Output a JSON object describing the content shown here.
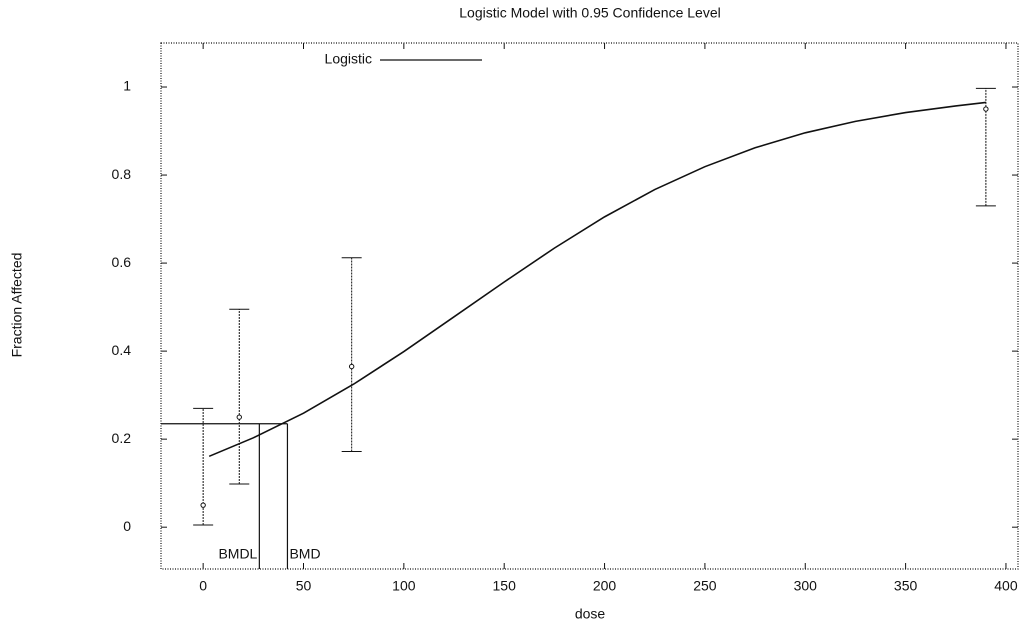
{
  "chart_data": {
    "type": "errorbar-fit",
    "title": "Logistic Model with 0.95 Confidence Level",
    "x_label": "dose",
    "y_label": "Fraction Affected",
    "xlim": [
      -21,
      406
    ],
    "ylim": [
      -0.095,
      1.1
    ],
    "xticks": [
      0,
      50,
      100,
      150,
      200,
      250,
      300,
      350,
      400
    ],
    "yticks": [
      0,
      0.2,
      0.4,
      0.6,
      0.8,
      1
    ],
    "observed": {
      "x": [
        0,
        18,
        74,
        390
      ],
      "values": [
        0.05,
        0.25,
        0.365,
        0.95
      ],
      "lower": [
        0.005,
        0.098,
        0.172,
        0.73
      ],
      "upper": [
        0.27,
        0.495,
        0.612,
        0.997
      ]
    },
    "series": [
      {
        "name": "Logistic",
        "color": "#111111",
        "x": [
          3,
          25,
          50,
          75,
          100,
          125,
          150,
          175,
          200,
          225,
          250,
          275,
          300,
          325,
          350,
          375,
          390
        ],
        "values": [
          0.161,
          0.203,
          0.259,
          0.325,
          0.399,
          0.478,
          0.557,
          0.634,
          0.705,
          0.767,
          0.819,
          0.862,
          0.896,
          0.922,
          0.942,
          0.957,
          0.965
        ]
      }
    ],
    "bmr_level": 0.235,
    "bmdl": {
      "label": "BMDL",
      "value": 28
    },
    "bmd": {
      "label": "BMD",
      "value": 42
    }
  }
}
